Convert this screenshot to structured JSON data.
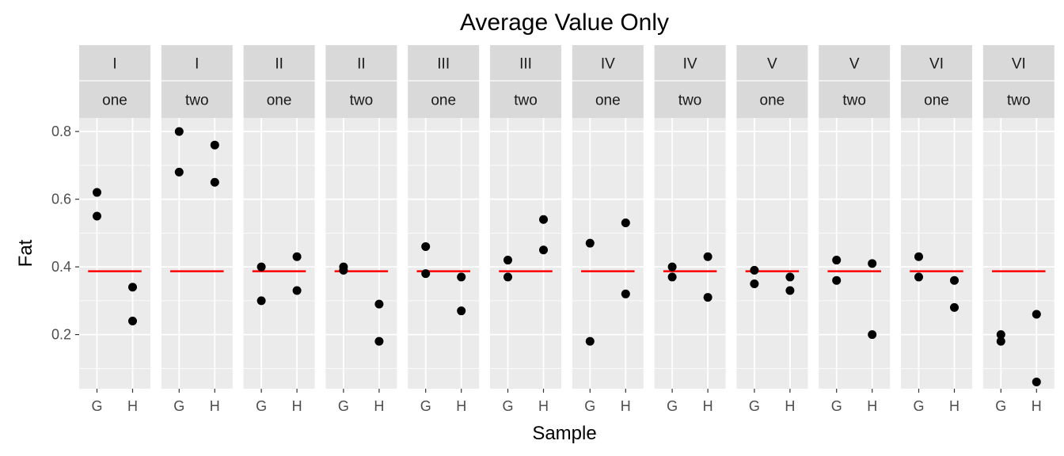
{
  "chart_data": {
    "type": "scatter",
    "title": "Average Value Only",
    "xlabel": "Sample",
    "ylabel": "Fat",
    "x_categories": [
      "G",
      "H"
    ],
    "y_ticks": [
      0.2,
      0.4,
      0.6,
      0.8
    ],
    "y_tick_labels": [
      "0.2",
      "0.4",
      "0.6",
      "0.8"
    ],
    "ylim": [
      0.04,
      0.84
    ],
    "grid": true,
    "average_line": {
      "value": 0.387,
      "color": "#ff0000"
    },
    "colors": {
      "panel_background": "#ebebeb",
      "strip_background": "#d9d9d9",
      "grid_line": "#ffffff",
      "point": "#000000"
    },
    "panels": [
      {
        "row1": "I",
        "row2": "one",
        "G": [
          0.62,
          0.55
        ],
        "H": [
          0.34,
          0.24
        ]
      },
      {
        "row1": "I",
        "row2": "two",
        "G": [
          0.8,
          0.68
        ],
        "H": [
          0.76,
          0.65
        ]
      },
      {
        "row1": "II",
        "row2": "one",
        "G": [
          0.4,
          0.3
        ],
        "H": [
          0.43,
          0.33
        ]
      },
      {
        "row1": "II",
        "row2": "two",
        "G": [
          0.4,
          0.39
        ],
        "H": [
          0.29,
          0.18
        ]
      },
      {
        "row1": "III",
        "row2": "one",
        "G": [
          0.46,
          0.38
        ],
        "H": [
          0.37,
          0.27
        ]
      },
      {
        "row1": "III",
        "row2": "two",
        "G": [
          0.42,
          0.37
        ],
        "H": [
          0.54,
          0.45
        ]
      },
      {
        "row1": "IV",
        "row2": "one",
        "G": [
          0.47,
          0.18
        ],
        "H": [
          0.53,
          0.32
        ]
      },
      {
        "row1": "IV",
        "row2": "two",
        "G": [
          0.4,
          0.37
        ],
        "H": [
          0.43,
          0.31
        ]
      },
      {
        "row1": "V",
        "row2": "one",
        "G": [
          0.39,
          0.35
        ],
        "H": [
          0.37,
          0.33
        ]
      },
      {
        "row1": "V",
        "row2": "two",
        "G": [
          0.42,
          0.36
        ],
        "H": [
          0.41,
          0.2
        ]
      },
      {
        "row1": "VI",
        "row2": "one",
        "G": [
          0.43,
          0.37
        ],
        "H": [
          0.36,
          0.28
        ]
      },
      {
        "row1": "VI",
        "row2": "two",
        "G": [
          0.2,
          0.18
        ],
        "H": [
          0.26,
          0.06
        ]
      }
    ]
  }
}
